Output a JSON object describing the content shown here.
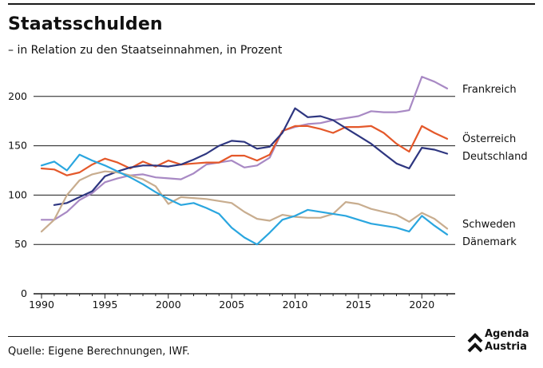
{
  "header": {
    "title": "Staatsschulden",
    "subtitle": "– in Relation zu den Staatseinnahmen, in Prozent"
  },
  "footer": {
    "source": "Quelle: Eigene Berechnungen, IWF.",
    "logo_line1": "Agenda",
    "logo_line2": "Austria"
  },
  "chart_data": {
    "type": "line",
    "title": "Staatsschulden",
    "subtitle": "– in Relation zu den Staatseinnahmen, in Prozent",
    "xlim": [
      1990,
      2022
    ],
    "ylim": [
      0,
      220
    ],
    "x_ticks": [
      1990,
      1995,
      2000,
      2005,
      2010,
      2015,
      2020
    ],
    "y_ticks": [
      0,
      50,
      100,
      150,
      200
    ],
    "grid": "horizontal",
    "legend": "end-of-line labels",
    "series": [
      {
        "name": "Frankreich",
        "color": "#a889c4",
        "x": [
          1990,
          1991,
          1992,
          1993,
          1994,
          1995,
          1996,
          1997,
          1998,
          1999,
          2000,
          2001,
          2002,
          2003,
          2004,
          2005,
          2006,
          2007,
          2008,
          2009,
          2010,
          2011,
          2012,
          2013,
          2014,
          2015,
          2016,
          2017,
          2018,
          2019,
          2020,
          2021,
          2022
        ],
        "values": [
          75,
          75,
          83,
          95,
          102,
          113,
          117,
          120,
          121,
          118,
          117,
          116,
          122,
          131,
          133,
          135,
          128,
          130,
          138,
          165,
          169,
          172,
          173,
          176,
          178,
          180,
          185,
          184,
          184,
          186,
          220,
          215,
          208
        ]
      },
      {
        "name": "Österreich",
        "color": "#e4582a",
        "x": [
          1990,
          1991,
          1992,
          1993,
          1994,
          1995,
          1996,
          1997,
          1998,
          1999,
          2000,
          2001,
          2002,
          2003,
          2004,
          2005,
          2006,
          2007,
          2008,
          2009,
          2010,
          2011,
          2012,
          2013,
          2014,
          2015,
          2016,
          2017,
          2018,
          2019,
          2020,
          2021,
          2022
        ],
        "values": [
          127,
          126,
          120,
          123,
          131,
          137,
          133,
          127,
          134,
          129,
          135,
          131,
          132,
          133,
          133,
          140,
          140,
          135,
          141,
          165,
          170,
          170,
          167,
          163,
          169,
          169,
          170,
          163,
          152,
          144,
          170,
          163,
          157
        ]
      },
      {
        "name": "Deutschland",
        "color": "#2e3680",
        "x": [
          1991,
          1992,
          1993,
          1994,
          1995,
          1996,
          1997,
          1998,
          1999,
          2000,
          2001,
          2002,
          2003,
          2004,
          2005,
          2006,
          2007,
          2008,
          2009,
          2010,
          2011,
          2012,
          2013,
          2014,
          2015,
          2016,
          2017,
          2018,
          2019,
          2020,
          2021,
          2022
        ],
        "values": [
          90,
          92,
          98,
          104,
          119,
          124,
          128,
          130,
          130,
          129,
          131,
          136,
          142,
          150,
          155,
          154,
          147,
          149,
          163,
          188,
          179,
          180,
          176,
          168,
          160,
          152,
          142,
          132,
          127,
          148,
          146,
          142
        ]
      },
      {
        "name": "Schweden",
        "color": "#c8ad8f",
        "x": [
          1990,
          1991,
          1992,
          1993,
          1994,
          1995,
          1996,
          1997,
          1998,
          1999,
          2000,
          2001,
          2002,
          2003,
          2004,
          2005,
          2006,
          2007,
          2008,
          2009,
          2010,
          2011,
          2012,
          2013,
          2014,
          2015,
          2016,
          2017,
          2018,
          2019,
          2020,
          2021,
          2022
        ],
        "values": [
          63,
          75,
          100,
          115,
          121,
          124,
          123,
          120,
          116,
          109,
          91,
          98,
          97,
          96,
          94,
          92,
          83,
          76,
          74,
          80,
          78,
          77,
          77,
          81,
          93,
          91,
          86,
          83,
          80,
          73,
          82,
          76,
          66
        ]
      },
      {
        "name": "Dänemark",
        "color": "#2aa6df",
        "x": [
          1990,
          1991,
          1992,
          1993,
          1994,
          1995,
          1996,
          1997,
          1998,
          1999,
          2000,
          2001,
          2002,
          2003,
          2004,
          2005,
          2006,
          2007,
          2008,
          2009,
          2010,
          2011,
          2012,
          2013,
          2014,
          2015,
          2016,
          2017,
          2018,
          2019,
          2020,
          2021,
          2022
        ],
        "values": [
          130,
          134,
          125,
          141,
          135,
          130,
          124,
          118,
          111,
          103,
          96,
          90,
          92,
          87,
          81,
          67,
          57,
          50,
          62,
          75,
          79,
          85,
          83,
          81,
          79,
          75,
          71,
          69,
          67,
          63,
          79,
          69,
          60
        ]
      }
    ]
  }
}
